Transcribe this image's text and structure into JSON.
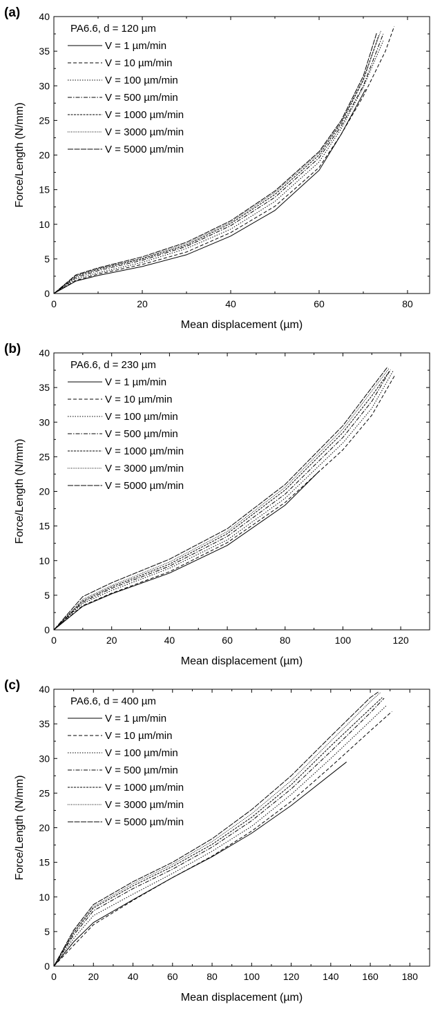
{
  "chart_data": [
    {
      "type": "line",
      "panel_label": "(a)",
      "legend_title": "PA6.6, d = 120 µm",
      "xlabel": "Mean displacement (µm)",
      "ylabel": "Force/Length (N/mm)",
      "xlim": [
        0,
        85
      ],
      "ylim": [
        0,
        40
      ],
      "xticks": [
        0,
        20,
        40,
        60,
        80
      ],
      "yticks": [
        0,
        5,
        10,
        15,
        20,
        25,
        30,
        35,
        40
      ],
      "legend_position": "top-left",
      "series": [
        {
          "name": "V = 1 µm/min",
          "dash": "",
          "x": [
            0,
            5,
            10,
            20,
            30,
            40,
            50,
            60,
            65,
            70.5
          ],
          "y": [
            0,
            1.8,
            2.6,
            3.9,
            5.6,
            8.3,
            12.0,
            17.8,
            23.0,
            29.5
          ]
        },
        {
          "name": "V = 10 µm/min",
          "dash": "5,3",
          "x": [
            0,
            5,
            10,
            20,
            30,
            40,
            50,
            60,
            65,
            70,
            75,
            77
          ],
          "y": [
            0,
            1.9,
            2.8,
            4.2,
            6.0,
            8.8,
            12.6,
            18.2,
            23.0,
            28.5,
            35.0,
            38.6
          ]
        },
        {
          "name": "V = 100 µm/min",
          "dash": "1.5,2",
          "x": [
            0,
            5,
            10,
            20,
            30,
            40,
            50,
            60,
            65,
            70,
            74.5
          ],
          "y": [
            0,
            2.1,
            3.0,
            4.5,
            6.5,
            9.3,
            13.3,
            19.0,
            23.8,
            29.8,
            36.5
          ]
        },
        {
          "name": "V = 500 µm/min",
          "dash": "6,2,1.5,2",
          "x": [
            0,
            5,
            10,
            20,
            30,
            40,
            50,
            60,
            65,
            70,
            74.5
          ],
          "y": [
            0,
            2.3,
            3.3,
            4.8,
            6.8,
            9.8,
            13.9,
            19.6,
            24.2,
            30.0,
            37.5
          ]
        },
        {
          "name": "V = 1000 µm/min",
          "dash": "3,1.5",
          "x": [
            0,
            5,
            10,
            20,
            30,
            40,
            50,
            60,
            65,
            70,
            73.5
          ],
          "y": [
            0,
            2.5,
            3.5,
            5.0,
            7.0,
            10.1,
            14.3,
            20.0,
            24.6,
            30.8,
            37.3
          ]
        },
        {
          "name": "V = 3000 µm/min",
          "dash": "1,1.5",
          "x": [
            0,
            5,
            10,
            20,
            30,
            40,
            50,
            60,
            65,
            70,
            74
          ],
          "y": [
            0,
            2.6,
            3.6,
            5.1,
            7.2,
            10.3,
            14.6,
            20.3,
            24.8,
            31.0,
            38.0
          ]
        },
        {
          "name": "V = 5000 µm/min",
          "dash": "8,1.5",
          "x": [
            0,
            5,
            10,
            20,
            30,
            40,
            50,
            60,
            65,
            70,
            73
          ],
          "y": [
            0,
            2.7,
            3.7,
            5.3,
            7.4,
            10.5,
            14.8,
            20.5,
            25.0,
            31.4,
            37.6
          ]
        }
      ]
    },
    {
      "type": "line",
      "panel_label": "(b)",
      "legend_title": "PA6.6, d = 230 µm",
      "xlabel": "Mean displacement (µm)",
      "ylabel": "Force/Length (N/mm)",
      "xlim": [
        0,
        130
      ],
      "ylim": [
        0,
        40
      ],
      "xticks": [
        0,
        20,
        40,
        60,
        80,
        100,
        120
      ],
      "yticks": [
        0,
        5,
        10,
        15,
        20,
        25,
        30,
        35,
        40
      ],
      "legend_position": "top-left",
      "series": [
        {
          "name": "V = 1 µm/min",
          "dash": "",
          "x": [
            0,
            10,
            20,
            40,
            60,
            80,
            92
          ],
          "y": [
            0,
            3.4,
            5.2,
            8.2,
            12.2,
            18.0,
            23.0
          ]
        },
        {
          "name": "V = 10 µm/min",
          "dash": "5,3",
          "x": [
            0,
            10,
            20,
            40,
            60,
            80,
            100,
            110,
            118
          ],
          "y": [
            0,
            3.5,
            5.3,
            8.4,
            12.6,
            18.4,
            26.0,
            31.0,
            36.8
          ]
        },
        {
          "name": "V = 100 µm/min",
          "dash": "1.5,2",
          "x": [
            0,
            10,
            20,
            40,
            60,
            80,
            100,
            110,
            117.5
          ],
          "y": [
            0,
            3.8,
            5.7,
            8.9,
            13.0,
            19.0,
            27.0,
            32.0,
            37.5
          ]
        },
        {
          "name": "V = 500 µm/min",
          "dash": "6,2,1.5,2",
          "x": [
            0,
            10,
            20,
            40,
            60,
            80,
            100,
            110,
            116.5
          ],
          "y": [
            0,
            4.0,
            6.0,
            9.2,
            13.5,
            19.6,
            27.8,
            33.0,
            37.6
          ]
        },
        {
          "name": "V = 1000 µm/min",
          "dash": "3,1.5",
          "x": [
            0,
            10,
            20,
            40,
            60,
            80,
            100,
            110,
            116
          ],
          "y": [
            0,
            4.2,
            6.2,
            9.5,
            13.9,
            20.2,
            28.5,
            33.8,
            37.3
          ]
        },
        {
          "name": "V = 3000 µm/min",
          "dash": "1,1.5",
          "x": [
            0,
            10,
            20,
            40,
            60,
            80,
            100,
            110,
            116
          ],
          "y": [
            0,
            4.4,
            6.4,
            9.8,
            14.2,
            20.6,
            29.0,
            34.5,
            37.8
          ]
        },
        {
          "name": "V = 5000 µm/min",
          "dash": "8,1.5",
          "x": [
            0,
            10,
            20,
            40,
            60,
            80,
            100,
            110,
            115.5
          ],
          "y": [
            0,
            4.8,
            6.8,
            10.2,
            14.6,
            21.0,
            29.5,
            35.0,
            38.0
          ]
        }
      ]
    },
    {
      "type": "line",
      "panel_label": "(c)",
      "legend_title": "PA6.6, d = 400 µm",
      "xlabel": "Mean displacement (µm)",
      "ylabel": "Force/Length (N/mm)",
      "xlim": [
        0,
        190
      ],
      "ylim": [
        0,
        40
      ],
      "xticks": [
        0,
        20,
        40,
        60,
        80,
        100,
        120,
        140,
        160,
        180
      ],
      "yticks": [
        0,
        5,
        10,
        15,
        20,
        25,
        30,
        35,
        40
      ],
      "legend_position": "top-left",
      "series": [
        {
          "name": "V = 1 µm/min",
          "dash": "",
          "x": [
            0,
            10,
            20,
            40,
            60,
            80,
            100,
            120,
            148
          ],
          "y": [
            0,
            3.5,
            6.3,
            9.6,
            12.8,
            15.8,
            19.2,
            23.2,
            29.5
          ]
        },
        {
          "name": "V = 10 µm/min",
          "dash": "5,3",
          "x": [
            0,
            10,
            20,
            40,
            60,
            80,
            100,
            120,
            140,
            160,
            171
          ],
          "y": [
            0,
            3.0,
            6.0,
            9.5,
            12.8,
            15.9,
            19.5,
            23.8,
            28.8,
            34.0,
            36.8
          ]
        },
        {
          "name": "V = 100 µm/min",
          "dash": "1.5,2",
          "x": [
            0,
            10,
            20,
            40,
            60,
            80,
            100,
            120,
            140,
            160,
            168
          ],
          "y": [
            0,
            4.0,
            7.3,
            10.4,
            13.4,
            16.6,
            20.2,
            24.8,
            30.0,
            35.4,
            37.6
          ]
        },
        {
          "name": "V = 500 µm/min",
          "dash": "6,2,1.5,2",
          "x": [
            0,
            10,
            20,
            40,
            60,
            80,
            100,
            120,
            140,
            160,
            167
          ],
          "y": [
            0,
            4.5,
            8.0,
            11.2,
            14.0,
            17.2,
            21.0,
            25.6,
            31.0,
            36.6,
            38.7
          ]
        },
        {
          "name": "V = 1000 µm/min",
          "dash": "3,1.5",
          "x": [
            0,
            10,
            20,
            40,
            60,
            80,
            100,
            120,
            140,
            160,
            166
          ],
          "y": [
            0,
            4.8,
            8.4,
            11.6,
            14.4,
            17.6,
            21.5,
            26.2,
            31.8,
            37.2,
            38.8
          ]
        },
        {
          "name": "V = 3000 µm/min",
          "dash": "1,1.5",
          "x": [
            0,
            10,
            20,
            40,
            60,
            80,
            100,
            120,
            140,
            160,
            165
          ],
          "y": [
            0,
            5.0,
            8.6,
            11.9,
            14.7,
            18.0,
            22.0,
            26.8,
            32.5,
            38.2,
            39.5
          ]
        },
        {
          "name": "V = 5000 µm/min",
          "dash": "8,1.5",
          "x": [
            0,
            10,
            20,
            40,
            60,
            80,
            100,
            120,
            140,
            160,
            164
          ],
          "y": [
            0,
            5.2,
            8.9,
            12.2,
            15.0,
            18.4,
            22.6,
            27.5,
            33.2,
            38.8,
            39.6
          ]
        }
      ]
    }
  ]
}
